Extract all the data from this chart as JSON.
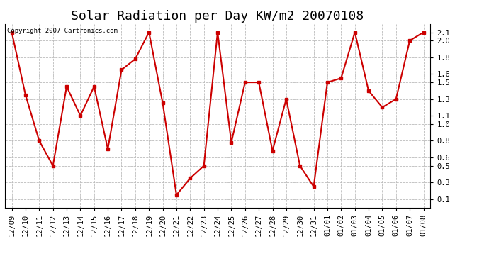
{
  "title": "Solar Radiation per Day KW/m2 20070108",
  "copyright_text": "Copyright 2007 Cartronics.com",
  "labels": [
    "12/09",
    "12/10",
    "12/11",
    "12/12",
    "12/13",
    "12/14",
    "12/15",
    "12/16",
    "12/17",
    "12/18",
    "12/19",
    "12/20",
    "12/21",
    "12/22",
    "12/23",
    "12/24",
    "12/25",
    "12/26",
    "12/27",
    "12/28",
    "12/29",
    "12/30",
    "12/31",
    "01/01",
    "01/02",
    "01/03",
    "01/04",
    "01/05",
    "01/06",
    "01/07",
    "01/08"
  ],
  "values": [
    2.1,
    1.35,
    0.8,
    0.5,
    1.45,
    1.1,
    1.45,
    0.7,
    1.65,
    1.78,
    2.1,
    1.25,
    0.15,
    0.35,
    0.5,
    2.1,
    0.78,
    1.5,
    1.5,
    0.68,
    1.3,
    0.5,
    0.25,
    1.5,
    1.55,
    2.1,
    1.4,
    1.2,
    1.3,
    2.0,
    2.1
  ],
  "line_color": "#cc0000",
  "marker": "s",
  "marker_size": 3,
  "ylim": [
    0.0,
    2.2
  ],
  "ytick_positions": [
    0.1,
    0.3,
    0.5,
    0.6,
    0.8,
    1.0,
    1.1,
    1.3,
    1.5,
    1.6,
    1.8,
    2.0,
    2.1
  ],
  "ytick_labels": [
    "0.1",
    "0.3",
    "0.5",
    "0.6",
    "0.8",
    "1.0",
    "1.1",
    "1.3",
    "1.5",
    "1.6",
    "1.8",
    "2.0",
    "2.1"
  ],
  "background_color": "#ffffff",
  "grid_color": "#bbbbbb",
  "title_fontsize": 13,
  "label_fontsize": 7.5,
  "copyright_fontsize": 6.5
}
